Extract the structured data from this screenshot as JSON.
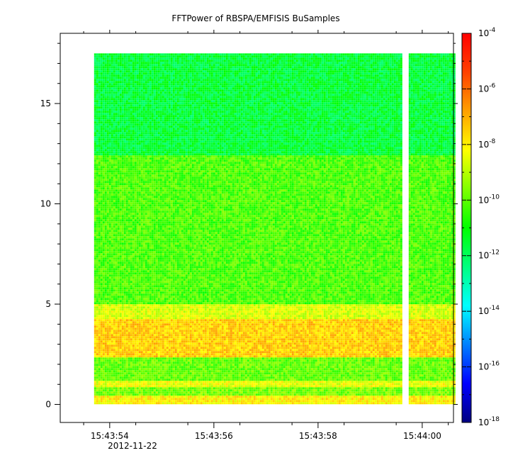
{
  "chart_data": {
    "type": "heatmap",
    "title": "FFTPower of RBSPA/EMFISIS  BuSamples",
    "xlabel": "",
    "ylabel": "",
    "x_start": "15:43:53.7",
    "x_end": "15:44:00.6",
    "data_x_start": "15:43:53.7",
    "data_x_end": "15:44:00.6",
    "data_gap": [
      "15:43:59.62",
      "15:43:59.70"
    ],
    "x_range_seconds": [
      53.05,
      60.6
    ],
    "data_x_range_seconds": [
      53.7,
      60.6
    ],
    "gap_range_seconds": [
      59.62,
      59.7
    ],
    "x_minor_ticks_seconds": [
      53.5,
      54.5,
      55.5,
      56.5,
      57.5,
      58.5,
      59.5,
      60.5
    ],
    "x_major_ticks_seconds": [
      54,
      56,
      58,
      60
    ],
    "x_tick_labels": [
      "15:43:54",
      "15:43:56",
      "15:43:58",
      "15:44:00"
    ],
    "x_date_label": "2012-11-22",
    "ylim": [
      -0.9,
      18.5
    ],
    "y_data_range": [
      0,
      17.5
    ],
    "y_ticks": [
      0,
      5,
      10,
      15
    ],
    "y_tick_labels": [
      "0",
      "5",
      "10",
      "15"
    ],
    "colorbar": {
      "scale": "log",
      "range": [
        1e-18,
        0.0001
      ],
      "tick_exponents": [
        -4,
        -6,
        -8,
        -10,
        -12,
        -14,
        -16,
        -18
      ],
      "tick_base": "10",
      "colormap": [
        "#000080",
        "#0000ff",
        "#0080ff",
        "#00ffff",
        "#00ff80",
        "#00ff00",
        "#80ff00",
        "#ffff00",
        "#ffa000",
        "#ff4000",
        "#ff0000"
      ]
    },
    "frequency_bands": [
      {
        "y_range": [
          12.4,
          17.5
        ],
        "log10_power": -11.6
      },
      {
        "y_range": [
          5.0,
          12.4
        ],
        "log10_power": -10.2
      },
      {
        "y_range": [
          4.3,
          5.0
        ],
        "log10_power": -8.6
      },
      {
        "y_range": [
          2.3,
          4.3
        ],
        "log10_power": -7.5
      },
      {
        "y_range": [
          1.2,
          2.3
        ],
        "log10_power": -9.9
      },
      {
        "y_range": [
          0.9,
          1.2
        ],
        "log10_power": -8.4
      },
      {
        "y_range": [
          0.4,
          0.9
        ],
        "log10_power": -9.7
      },
      {
        "y_range": [
          0.0,
          0.4
        ],
        "log10_power": -8.0
      }
    ],
    "grid": false
  }
}
